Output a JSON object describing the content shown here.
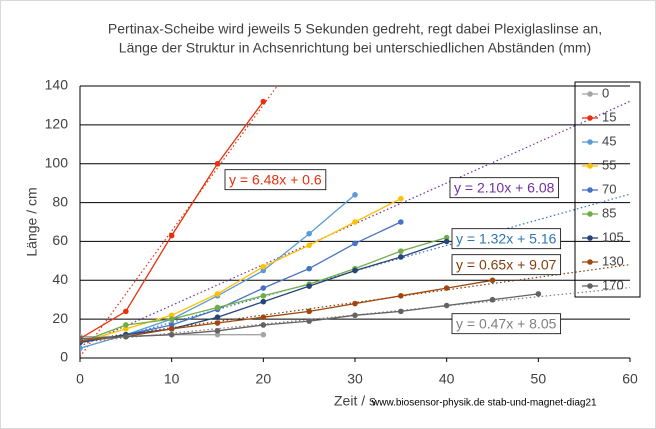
{
  "chart_data": {
    "type": "line",
    "title": [
      "Pertinax-Scheibe wird jeweils 5 Sekunden gedreht, regt dabei Plexiglaslinse an,",
      "Länge der Struktur in Achsenrichtung bei unterschiedlichen Abständen (mm)"
    ],
    "x_label": "Zeit / s",
    "y_label": "Länge / cm",
    "watermark": "www.biosensor-physik.de  stab-und-magnet-diag21",
    "xlim": [
      0,
      60
    ],
    "xticks": [
      0,
      10,
      20,
      30,
      40,
      50,
      60
    ],
    "ylim": [
      0,
      140
    ],
    "yticks": [
      0,
      20,
      40,
      60,
      80,
      100,
      120,
      140
    ],
    "grid": true,
    "legend": "right",
    "series": [
      {
        "name": "0",
        "color": "#a5a5a5",
        "x": [
          0,
          5,
          10,
          15,
          20
        ],
        "values": [
          11,
          11,
          12,
          12,
          12
        ]
      },
      {
        "name": "15",
        "color": "#e8300c",
        "x": [
          0,
          5,
          10,
          15,
          20
        ],
        "values": [
          10,
          24,
          63,
          100,
          132
        ]
      },
      {
        "name": "45",
        "color": "#5b9bd5",
        "x": [
          0,
          5,
          10,
          15,
          20,
          25,
          30
        ],
        "values": [
          5,
          12,
          20,
          32,
          45,
          64,
          84
        ]
      },
      {
        "name": "55",
        "color": "#ffc000",
        "x": [
          0,
          5,
          10,
          15,
          20,
          25,
          30,
          35
        ],
        "values": [
          8,
          15,
          22,
          33,
          47,
          58,
          70,
          82
        ]
      },
      {
        "name": "70",
        "color": "#4472c4",
        "x": [
          0,
          5,
          10,
          15,
          20,
          25,
          30,
          35
        ],
        "values": [
          8,
          12,
          17,
          25,
          36,
          46,
          59,
          70
        ]
      },
      {
        "name": "85",
        "color": "#70ad47",
        "x": [
          0,
          5,
          10,
          15,
          20,
          25,
          30,
          35,
          40
        ],
        "values": [
          8,
          17,
          20,
          26,
          32,
          38,
          46,
          55,
          62
        ]
      },
      {
        "name": "105",
        "color": "#264478",
        "x": [
          0,
          5,
          10,
          15,
          20,
          25,
          30,
          35,
          40
        ],
        "values": [
          8,
          12,
          15,
          21,
          29,
          37,
          45,
          52,
          60
        ]
      },
      {
        "name": "130",
        "color": "#9e480e",
        "x": [
          0,
          5,
          10,
          15,
          20,
          25,
          30,
          35,
          40,
          45
        ],
        "values": [
          9,
          11,
          15,
          18,
          21,
          24,
          28,
          32,
          36,
          40
        ]
      },
      {
        "name": "170",
        "color": "#636363",
        "x": [
          0,
          5,
          10,
          15,
          20,
          25,
          30,
          35,
          40,
          45,
          50
        ],
        "values": [
          10,
          11,
          12,
          14,
          17,
          19,
          22,
          24,
          27,
          30,
          33
        ]
      }
    ],
    "trendlines": [
      {
        "label": "y = 6.48x + 0.6",
        "slope": 6.48,
        "intercept": 0.6,
        "color": "#e8300c"
      },
      {
        "label": "y = 2.10x + 6.08",
        "slope": 2.1,
        "intercept": 6.08,
        "color": "#7030a0"
      },
      {
        "label": "y = 1.32x + 5.16",
        "slope": 1.32,
        "intercept": 5.16,
        "color": "#2e75b6"
      },
      {
        "label": "y = 0.65x + 9.07",
        "slope": 0.65,
        "intercept": 9.07,
        "color": "#843c0c"
      },
      {
        "label": "y = 0.47x + 8.05",
        "slope": 0.47,
        "intercept": 8.05,
        "color": "#7f7f7f"
      }
    ]
  }
}
